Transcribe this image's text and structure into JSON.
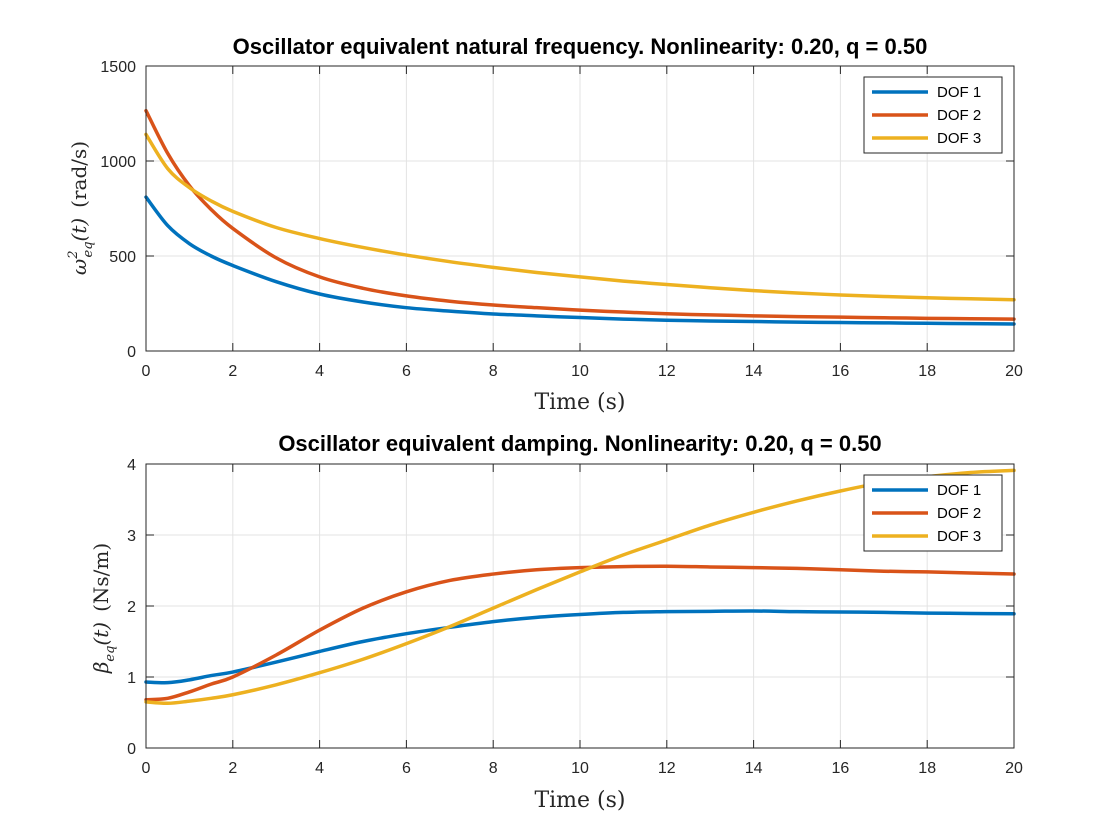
{
  "chart_data": [
    {
      "type": "line",
      "title": "Oscillator equivalent natural frequency. Nonlinearity: 0.20, q = 0.50",
      "xlabel": "Time (s)",
      "ylabel": "ω²eq(t) (rad/s)",
      "ylabel_parts": {
        "sym": "ω",
        "sup": "2",
        "sub": "eq",
        "arg": "(t)",
        "unit": "(rad/s)"
      },
      "xlim": [
        0,
        20
      ],
      "ylim": [
        0,
        1500
      ],
      "xticks": [
        0,
        2,
        4,
        6,
        8,
        10,
        12,
        14,
        16,
        18,
        20
      ],
      "yticks": [
        0,
        500,
        1000,
        1500
      ],
      "grid": true,
      "legend_position": "top-right",
      "x": [
        0,
        0.5,
        1,
        1.5,
        2,
        3,
        4,
        5,
        6,
        7,
        8,
        9,
        10,
        11,
        12,
        13,
        14,
        15,
        16,
        17,
        18,
        19,
        20
      ],
      "series": [
        {
          "name": "DOF 1",
          "color": "#0072BD",
          "values": [
            810,
            660,
            565,
            500,
            450,
            365,
            300,
            258,
            228,
            210,
            195,
            185,
            176,
            168,
            162,
            158,
            155,
            152,
            150,
            148,
            146,
            144,
            142
          ]
        },
        {
          "name": "DOF 2",
          "color": "#D95319",
          "values": [
            1265,
            1040,
            870,
            745,
            645,
            490,
            390,
            330,
            290,
            262,
            242,
            228,
            215,
            205,
            196,
            190,
            185,
            181,
            178,
            175,
            172,
            170,
            168
          ]
        },
        {
          "name": "DOF 3",
          "color": "#EDB120",
          "values": [
            1140,
            960,
            860,
            790,
            735,
            650,
            592,
            545,
            505,
            470,
            440,
            413,
            390,
            368,
            350,
            333,
            318,
            305,
            295,
            287,
            280,
            275,
            270
          ]
        }
      ]
    },
    {
      "type": "line",
      "title": "Oscillator equivalent damping. Nonlinearity: 0.20, q = 0.50",
      "xlabel": "Time (s)",
      "ylabel": "βeq(t) (Ns/m)",
      "ylabel_parts": {
        "sym": "β",
        "sup": "",
        "sub": "eq",
        "arg": "(t)",
        "unit": "(Ns/m)"
      },
      "xlim": [
        0,
        20
      ],
      "ylim": [
        0,
        4
      ],
      "xticks": [
        0,
        2,
        4,
        6,
        8,
        10,
        12,
        14,
        16,
        18,
        20
      ],
      "yticks": [
        0,
        1,
        2,
        3,
        4
      ],
      "grid": true,
      "legend_position": "top-right",
      "x": [
        0,
        0.5,
        1,
        1.5,
        2,
        3,
        4,
        5,
        6,
        7,
        8,
        9,
        10,
        11,
        12,
        13,
        14,
        15,
        16,
        17,
        18,
        19,
        20
      ],
      "series": [
        {
          "name": "DOF 1",
          "color": "#0072BD",
          "values": [
            0.93,
            0.92,
            0.96,
            1.02,
            1.07,
            1.21,
            1.36,
            1.5,
            1.61,
            1.7,
            1.78,
            1.84,
            1.88,
            1.91,
            1.92,
            1.925,
            1.93,
            1.92,
            1.915,
            1.91,
            1.9,
            1.895,
            1.89
          ]
        },
        {
          "name": "DOF 2",
          "color": "#D95319",
          "values": [
            0.68,
            0.7,
            0.79,
            0.9,
            1.0,
            1.31,
            1.66,
            1.97,
            2.2,
            2.36,
            2.45,
            2.51,
            2.54,
            2.555,
            2.56,
            2.55,
            2.54,
            2.53,
            2.51,
            2.49,
            2.48,
            2.465,
            2.45
          ]
        },
        {
          "name": "DOF 3",
          "color": "#EDB120",
          "values": [
            0.65,
            0.63,
            0.66,
            0.7,
            0.75,
            0.89,
            1.06,
            1.25,
            1.47,
            1.71,
            1.97,
            2.23,
            2.48,
            2.72,
            2.93,
            3.14,
            3.32,
            3.48,
            3.62,
            3.74,
            3.82,
            3.88,
            3.91
          ]
        }
      ]
    }
  ]
}
